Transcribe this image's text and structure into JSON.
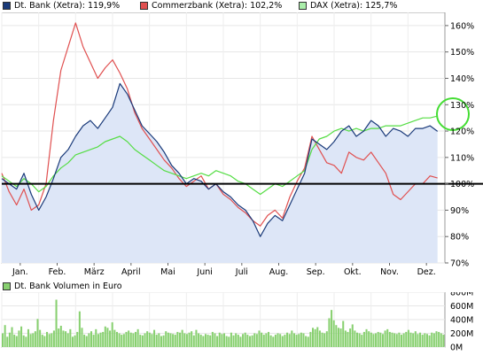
{
  "legend": [
    {
      "label": "Dt. Bank (Xetra): 119,9%",
      "color": "#1a3a7a"
    },
    {
      "label": "Commerzbank (Xetra): 102,2%",
      "color": "#e05050"
    },
    {
      "label": "DAX (Xetra): 125,7%",
      "color": "#55dd44"
    }
  ],
  "volume_label": "Dt. Bank Volumen in Euro",
  "chart_data": [
    {
      "type": "line",
      "x_ticks": [
        "Jan.",
        "Feb.",
        "März",
        "April",
        "Mai",
        "Juni",
        "Juli",
        "Aug.",
        "Sep.",
        "Okt.",
        "Nov.",
        "Dez."
      ],
      "y_ticks": [
        "160%",
        "150%",
        "140%",
        "130%",
        "120%",
        "110%",
        "100%",
        "90%",
        "80%",
        "70%"
      ],
      "ylim": [
        70,
        165
      ],
      "xlim": [
        0,
        12
      ],
      "reference_line": 100,
      "series": [
        {
          "name": "Dt. Bank (Xetra): 119,9%",
          "color": "#1a3a7a",
          "fill": "#dde6f7",
          "x": [
            0,
            0.2,
            0.4,
            0.6,
            0.8,
            1.0,
            1.2,
            1.4,
            1.6,
            1.8,
            2.0,
            2.2,
            2.4,
            2.6,
            2.8,
            3.0,
            3.2,
            3.4,
            3.6,
            3.8,
            4.0,
            4.2,
            4.4,
            4.6,
            4.8,
            5.0,
            5.2,
            5.4,
            5.6,
            5.8,
            6.0,
            6.2,
            6.4,
            6.6,
            6.8,
            7.0,
            7.2,
            7.4,
            7.6,
            7.8,
            8.0,
            8.2,
            8.4,
            8.6,
            8.8,
            9.0,
            9.2,
            9.4,
            9.6,
            9.8,
            10.0,
            10.2,
            10.4,
            10.6,
            10.8,
            11.0,
            11.2,
            11.4,
            11.6,
            11.8
          ],
          "y": [
            102,
            100,
            98,
            104,
            96,
            90,
            95,
            102,
            110,
            113,
            118,
            122,
            124,
            121,
            125,
            129,
            138,
            134,
            128,
            122,
            119,
            116,
            112,
            107,
            104,
            100,
            102,
            101,
            98,
            100,
            97,
            95,
            92,
            90,
            86,
            80,
            85,
            88,
            86,
            92,
            98,
            104,
            117,
            115,
            113,
            116,
            120,
            122,
            118,
            120,
            124,
            122,
            118,
            121,
            120,
            118,
            121,
            121,
            122,
            119.9
          ]
        },
        {
          "name": "Commerzbank (Xetra): 102,2%",
          "color": "#e05050",
          "x": [
            0,
            0.2,
            0.4,
            0.6,
            0.8,
            1.0,
            1.2,
            1.4,
            1.6,
            1.8,
            2.0,
            2.2,
            2.4,
            2.6,
            2.8,
            3.0,
            3.2,
            3.4,
            3.6,
            3.8,
            4.0,
            4.2,
            4.4,
            4.6,
            4.8,
            5.0,
            5.2,
            5.4,
            5.6,
            5.8,
            6.0,
            6.2,
            6.4,
            6.6,
            6.8,
            7.0,
            7.2,
            7.4,
            7.6,
            7.8,
            8.0,
            8.2,
            8.4,
            8.6,
            8.8,
            9.0,
            9.2,
            9.4,
            9.6,
            9.8,
            10.0,
            10.2,
            10.4,
            10.6,
            10.8,
            11.0,
            11.2,
            11.4,
            11.6,
            11.8
          ],
          "y": [
            104,
            97,
            92,
            98,
            90,
            92,
            100,
            124,
            143,
            152,
            161,
            152,
            146,
            140,
            144,
            147,
            142,
            136,
            127,
            121,
            117,
            113,
            109,
            106,
            102,
            99,
            101,
            103,
            98,
            100,
            96,
            94,
            91,
            89,
            86,
            84,
            88,
            90,
            87,
            95,
            101,
            106,
            118,
            113,
            108,
            107,
            104,
            112,
            110,
            109,
            112,
            108,
            104,
            96,
            94,
            97,
            100,
            100,
            103,
            102.2
          ]
        },
        {
          "name": "DAX (Xetra): 125,7%",
          "color": "#55dd44",
          "x": [
            0,
            0.2,
            0.4,
            0.6,
            0.8,
            1.0,
            1.2,
            1.4,
            1.6,
            1.8,
            2.0,
            2.2,
            2.4,
            2.6,
            2.8,
            3.0,
            3.2,
            3.4,
            3.6,
            3.8,
            4.0,
            4.2,
            4.4,
            4.6,
            4.8,
            5.0,
            5.2,
            5.4,
            5.6,
            5.8,
            6.0,
            6.2,
            6.4,
            6.6,
            6.8,
            7.0,
            7.2,
            7.4,
            7.6,
            7.8,
            8.0,
            8.2,
            8.4,
            8.6,
            8.8,
            9.0,
            9.2,
            9.4,
            9.6,
            9.8,
            10.0,
            10.2,
            10.4,
            10.6,
            10.8,
            11.0,
            11.2,
            11.4,
            11.6,
            11.8
          ],
          "y": [
            103,
            101,
            99,
            102,
            100,
            97,
            99,
            103,
            106,
            108,
            111,
            112,
            113,
            114,
            116,
            117,
            118,
            116,
            113,
            111,
            109,
            107,
            105,
            104,
            103,
            102,
            103,
            104,
            103,
            105,
            104,
            103,
            101,
            100,
            98,
            96,
            98,
            100,
            99,
            101,
            103,
            105,
            113,
            117,
            118,
            120,
            121,
            120,
            121,
            120,
            121,
            121,
            122,
            122,
            122,
            123,
            124,
            125,
            125,
            125.7
          ]
        }
      ]
    },
    {
      "type": "bar",
      "title": "Dt. Bank Volumen in Euro",
      "y_ticks": [
        "800M",
        "600M",
        "400M",
        "200M",
        "0M"
      ],
      "ylim": [
        0,
        800
      ],
      "x_ticks": [
        "Jan.",
        "Feb.",
        "März",
        "April",
        "Mai",
        "Juni",
        "Juli",
        "Aug.",
        "Sep.",
        "Okt.",
        "Nov.",
        "Dez."
      ],
      "color": "#88d070",
      "values": [
        200,
        320,
        150,
        210,
        290,
        180,
        160,
        240,
        300,
        170,
        150,
        260,
        190,
        200,
        230,
        410,
        250,
        180,
        160,
        220,
        190,
        200,
        240,
        690,
        270,
        310,
        240,
        230,
        200,
        260,
        150,
        170,
        220,
        520,
        280,
        180,
        160,
        200,
        230,
        180,
        260,
        190,
        210,
        220,
        300,
        280,
        240,
        360,
        250,
        220,
        200,
        180,
        190,
        220,
        240,
        210,
        200,
        220,
        260,
        180,
        170,
        200,
        230,
        210,
        190,
        250,
        180,
        200,
        160,
        170,
        230,
        210,
        200,
        190,
        180,
        220,
        210,
        250,
        200,
        190,
        210,
        230,
        170,
        250,
        200,
        180,
        160,
        190,
        180,
        170,
        220,
        200,
        160,
        210,
        190,
        200,
        160,
        150,
        210,
        170,
        200,
        180,
        150,
        190,
        210,
        180,
        160,
        170,
        200,
        190,
        240,
        210,
        180,
        200,
        220,
        170,
        150,
        180,
        200,
        190,
        160,
        180,
        210,
        190,
        240,
        200,
        180,
        190,
        210,
        200,
        160,
        150,
        220,
        280,
        260,
        290,
        240,
        210,
        200,
        230,
        420,
        540,
        390,
        320,
        280,
        270,
        380,
        240,
        220,
        270,
        330,
        240,
        210,
        200,
        180,
        220,
        260,
        230,
        210,
        190,
        200,
        220,
        210,
        190,
        240,
        260,
        220,
        210,
        200,
        190,
        210,
        180,
        200,
        220,
        250,
        210,
        200,
        230,
        190,
        210,
        180,
        200,
        190,
        170,
        210,
        200,
        230,
        220,
        200,
        180
      ]
    }
  ]
}
